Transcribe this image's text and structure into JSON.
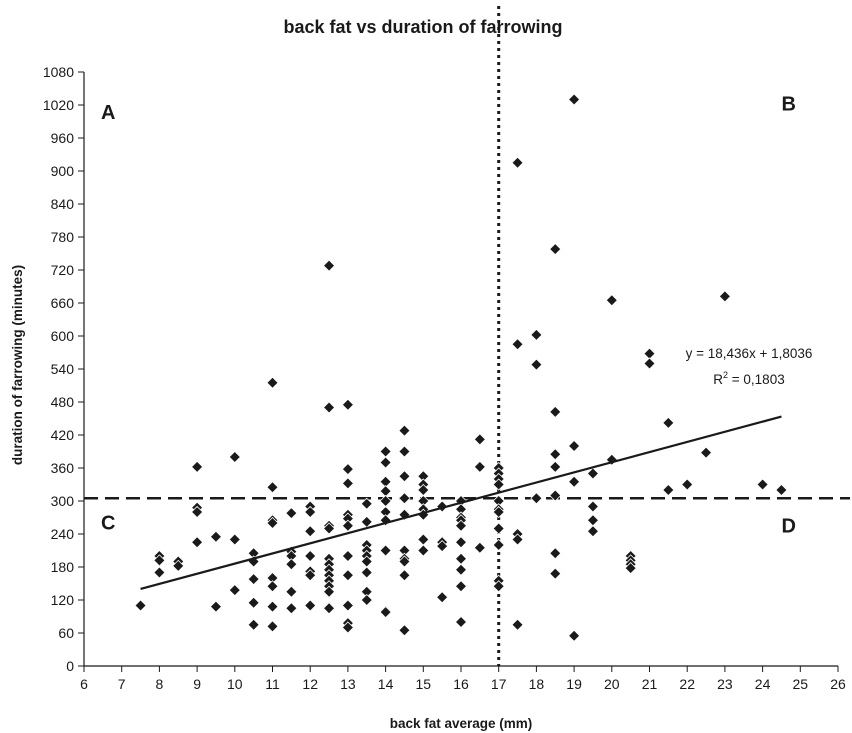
{
  "chart_data": {
    "type": "scatter",
    "title": "back fat vs duration of farrowing",
    "xlabel": "back fat average (mm)",
    "ylabel": "duration of farrowing (minutes)",
    "xlim": [
      6,
      26
    ],
    "ylim": [
      0,
      1080
    ],
    "xticks": [
      6,
      7,
      8,
      9,
      10,
      11,
      12,
      13,
      14,
      15,
      16,
      17,
      18,
      19,
      20,
      21,
      22,
      23,
      24,
      25,
      26
    ],
    "yticks": [
      0,
      60,
      120,
      180,
      240,
      300,
      360,
      420,
      480,
      540,
      600,
      660,
      720,
      780,
      840,
      900,
      960,
      1020,
      1080
    ],
    "grid": false,
    "marker_color": "#1a1a1a",
    "points": [
      [
        7.5,
        110
      ],
      [
        8,
        200
      ],
      [
        8,
        192
      ],
      [
        8,
        170
      ],
      [
        8.5,
        190
      ],
      [
        8.5,
        182
      ],
      [
        9,
        362
      ],
      [
        9,
        288
      ],
      [
        9,
        280
      ],
      [
        9,
        225
      ],
      [
        9.5,
        235
      ],
      [
        9.5,
        108
      ],
      [
        10,
        380
      ],
      [
        10,
        230
      ],
      [
        10,
        138
      ],
      [
        10.5,
        205
      ],
      [
        10.5,
        190
      ],
      [
        10.5,
        158
      ],
      [
        10.5,
        115
      ],
      [
        10.5,
        75
      ],
      [
        11,
        515
      ],
      [
        11,
        325
      ],
      [
        11,
        265
      ],
      [
        11,
        260
      ],
      [
        11,
        160
      ],
      [
        11,
        145
      ],
      [
        11,
        108
      ],
      [
        11,
        72
      ],
      [
        11.5,
        278
      ],
      [
        11.5,
        208
      ],
      [
        11.5,
        200
      ],
      [
        11.5,
        185
      ],
      [
        11.5,
        135
      ],
      [
        11.5,
        105
      ],
      [
        12,
        290
      ],
      [
        12,
        280
      ],
      [
        12,
        245
      ],
      [
        12,
        200
      ],
      [
        12,
        172
      ],
      [
        12,
        165
      ],
      [
        12,
        110
      ],
      [
        12.5,
        728
      ],
      [
        12.5,
        470
      ],
      [
        12.5,
        255
      ],
      [
        12.5,
        250
      ],
      [
        12.5,
        195
      ],
      [
        12.5,
        185
      ],
      [
        12.5,
        175
      ],
      [
        12.5,
        165
      ],
      [
        12.5,
        155
      ],
      [
        12.5,
        145
      ],
      [
        12.5,
        135
      ],
      [
        12.5,
        105
      ],
      [
        13,
        475
      ],
      [
        13,
        358
      ],
      [
        13,
        332
      ],
      [
        13,
        275
      ],
      [
        13,
        268
      ],
      [
        13,
        255
      ],
      [
        13,
        200
      ],
      [
        13,
        165
      ],
      [
        13,
        110
      ],
      [
        13,
        78
      ],
      [
        13,
        70
      ],
      [
        13.5,
        295
      ],
      [
        13.5,
        262
      ],
      [
        13.5,
        220
      ],
      [
        13.5,
        210
      ],
      [
        13.5,
        200
      ],
      [
        13.5,
        190
      ],
      [
        13.5,
        170
      ],
      [
        13.5,
        135
      ],
      [
        13.5,
        120
      ],
      [
        14,
        390
      ],
      [
        14,
        370
      ],
      [
        14,
        335
      ],
      [
        14,
        318
      ],
      [
        14,
        300
      ],
      [
        14,
        280
      ],
      [
        14,
        265
      ],
      [
        14,
        210
      ],
      [
        14,
        100
      ],
      [
        14,
        98
      ],
      [
        14.5,
        428
      ],
      [
        14.5,
        390
      ],
      [
        14.5,
        345
      ],
      [
        14.5,
        305
      ],
      [
        14.5,
        275
      ],
      [
        14.5,
        210
      ],
      [
        14.5,
        195
      ],
      [
        14.5,
        190
      ],
      [
        14.5,
        165
      ],
      [
        14.5,
        65
      ],
      [
        15,
        345
      ],
      [
        15,
        330
      ],
      [
        15,
        320
      ],
      [
        15,
        300
      ],
      [
        15,
        285
      ],
      [
        15,
        275
      ],
      [
        15,
        230
      ],
      [
        15,
        210
      ],
      [
        15.5,
        290
      ],
      [
        15.5,
        225
      ],
      [
        15.5,
        218
      ],
      [
        15.5,
        125
      ],
      [
        16,
        300
      ],
      [
        16,
        285
      ],
      [
        16,
        270
      ],
      [
        16,
        265
      ],
      [
        16,
        255
      ],
      [
        16,
        225
      ],
      [
        16,
        195
      ],
      [
        16,
        175
      ],
      [
        16,
        145
      ],
      [
        16,
        80
      ],
      [
        16.5,
        412
      ],
      [
        16.5,
        362
      ],
      [
        16.5,
        215
      ],
      [
        17,
        360
      ],
      [
        17,
        350
      ],
      [
        17,
        340
      ],
      [
        17,
        330
      ],
      [
        17,
        300
      ],
      [
        17,
        285
      ],
      [
        17,
        280
      ],
      [
        17,
        250
      ],
      [
        17,
        220
      ],
      [
        17,
        155
      ],
      [
        17,
        145
      ],
      [
        17.5,
        915
      ],
      [
        17.5,
        585
      ],
      [
        17.5,
        240
      ],
      [
        17.5,
        230
      ],
      [
        17.5,
        75
      ],
      [
        18,
        602
      ],
      [
        18,
        548
      ],
      [
        18,
        305
      ],
      [
        18.5,
        758
      ],
      [
        18.5,
        462
      ],
      [
        18.5,
        385
      ],
      [
        18.5,
        362
      ],
      [
        18.5,
        310
      ],
      [
        18.5,
        205
      ],
      [
        18.5,
        168
      ],
      [
        19,
        1030
      ],
      [
        19,
        400
      ],
      [
        19,
        335
      ],
      [
        19,
        55
      ],
      [
        19.5,
        350
      ],
      [
        19.5,
        290
      ],
      [
        19.5,
        265
      ],
      [
        19.5,
        245
      ],
      [
        20,
        665
      ],
      [
        20,
        375
      ],
      [
        20.5,
        200
      ],
      [
        20.5,
        192
      ],
      [
        20.5,
        185
      ],
      [
        20.5,
        178
      ],
      [
        21,
        568
      ],
      [
        21,
        550
      ],
      [
        21.5,
        442
      ],
      [
        21.5,
        320
      ],
      [
        22,
        330
      ],
      [
        22.5,
        388
      ],
      [
        23,
        672
      ],
      [
        24,
        330
      ],
      [
        24.5,
        320
      ]
    ],
    "trendline": {
      "slope": 18.436,
      "intercept": 1.8036,
      "x": [
        7.5,
        24.5
      ]
    },
    "equation_label": "y = 18,436x + 1,8036",
    "r2_label": "R",
    "r2_sup": "2",
    "r2_value": " = 0,1803",
    "vline_x": 17,
    "hline_y": 305,
    "quadrants": [
      {
        "label": "A",
        "x": 6.45,
        "y": 995
      },
      {
        "label": "B",
        "x": 24.5,
        "y": 1010
      },
      {
        "label": "C",
        "x": 6.45,
        "y": 248
      },
      {
        "label": "D",
        "x": 24.5,
        "y": 243
      }
    ]
  }
}
